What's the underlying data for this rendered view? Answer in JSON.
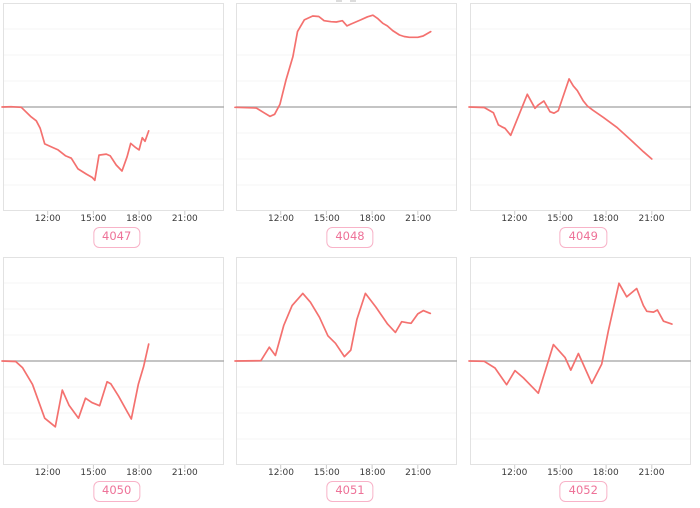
{
  "page": {
    "background": "#ffffff"
  },
  "colors": {
    "line": "#f4716f",
    "zero_line": "#b0b0b0",
    "grid_line": "#f4f4f4",
    "plot_border": "#e2e2e2",
    "tick_mark": "#cccccc",
    "tick_label": "#3a3a3a",
    "badge_text": "#ee7298",
    "badge_border": "#f8b3c8",
    "badge_background": "#ffffff"
  },
  "x_axis": {
    "tick_labels": [
      "12:00",
      "15:00",
      "18:00",
      "21:00"
    ],
    "tick_hours": [
      12,
      15,
      18,
      21
    ]
  },
  "chart_data": {
    "type": "line",
    "layout": "2x3 small multiples, shared style",
    "x_range_hours": [
      9.0,
      23.5
    ],
    "ylim_units": [
      -4,
      4
    ],
    "y_axis_labels_visible": false,
    "reference_line_value": 0,
    "grid": "horizontal only, 8 intervals, zero line emphasized",
    "panels": [
      {
        "label": "4047",
        "points": [
          [
            9.0,
            0
          ],
          [
            9.6,
            0.01
          ],
          [
            10.27,
            -0.01
          ],
          [
            10.88,
            -0.36
          ],
          [
            11.25,
            -0.53
          ],
          [
            11.51,
            -0.82
          ],
          [
            11.8,
            -1.42
          ],
          [
            12.35,
            -1.56
          ],
          [
            12.68,
            -1.65
          ],
          [
            13.18,
            -1.88
          ],
          [
            13.55,
            -1.97
          ],
          [
            13.99,
            -2.38
          ],
          [
            14.54,
            -2.58
          ],
          [
            14.93,
            -2.71
          ],
          [
            15.09,
            -2.82
          ],
          [
            15.37,
            -1.85
          ],
          [
            15.85,
            -1.81
          ],
          [
            16.11,
            -1.88
          ],
          [
            16.5,
            -2.23
          ],
          [
            16.88,
            -2.46
          ],
          [
            17.21,
            -1.91
          ],
          [
            17.45,
            -1.4
          ],
          [
            17.78,
            -1.56
          ],
          [
            18.0,
            -1.65
          ],
          [
            18.21,
            -1.18
          ],
          [
            18.39,
            -1.32
          ],
          [
            18.63,
            -0.92
          ]
        ]
      },
      {
        "label": "4048",
        "points": [
          [
            9.0,
            -0.01
          ],
          [
            10.4,
            -0.04
          ],
          [
            10.9,
            -0.22
          ],
          [
            11.3,
            -0.36
          ],
          [
            11.6,
            -0.28
          ],
          [
            11.95,
            0.1
          ],
          [
            12.35,
            1.04
          ],
          [
            12.8,
            1.94
          ],
          [
            13.1,
            2.9
          ],
          [
            13.55,
            3.35
          ],
          [
            14.1,
            3.5
          ],
          [
            14.5,
            3.48
          ],
          [
            14.85,
            3.32
          ],
          [
            15.3,
            3.28
          ],
          [
            15.65,
            3.27
          ],
          [
            16.05,
            3.32
          ],
          [
            16.35,
            3.12
          ],
          [
            16.6,
            3.19
          ],
          [
            17.25,
            3.35
          ],
          [
            17.7,
            3.47
          ],
          [
            18.05,
            3.53
          ],
          [
            18.35,
            3.41
          ],
          [
            18.7,
            3.22
          ],
          [
            19.0,
            3.12
          ],
          [
            19.35,
            2.94
          ],
          [
            19.8,
            2.77
          ],
          [
            20.1,
            2.71
          ],
          [
            20.45,
            2.68
          ],
          [
            21.0,
            2.68
          ],
          [
            21.35,
            2.73
          ],
          [
            21.85,
            2.9
          ]
        ]
      },
      {
        "label": "4049",
        "points": [
          [
            9.0,
            0
          ],
          [
            10.0,
            -0.02
          ],
          [
            10.6,
            -0.22
          ],
          [
            10.93,
            -0.69
          ],
          [
            11.15,
            -0.76
          ],
          [
            11.36,
            -0.82
          ],
          [
            11.74,
            -1.09
          ],
          [
            12.83,
            0.49
          ],
          [
            13.33,
            -0.05
          ],
          [
            13.55,
            0.08
          ],
          [
            13.92,
            0.23
          ],
          [
            14.32,
            -0.18
          ],
          [
            14.58,
            -0.24
          ],
          [
            14.86,
            -0.14
          ],
          [
            15.57,
            1.08
          ],
          [
            15.85,
            0.81
          ],
          [
            16.11,
            0.63
          ],
          [
            16.5,
            0.24
          ],
          [
            16.77,
            0.04
          ],
          [
            17.12,
            -0.12
          ],
          [
            17.82,
            -0.4
          ],
          [
            18.7,
            -0.78
          ],
          [
            19.57,
            -1.24
          ],
          [
            20.45,
            -1.72
          ],
          [
            21.0,
            -2.0
          ]
        ]
      },
      {
        "label": "4050",
        "points": [
          [
            9.0,
            0
          ],
          [
            9.9,
            -0.02
          ],
          [
            10.35,
            -0.26
          ],
          [
            11.0,
            -0.9
          ],
          [
            11.8,
            -2.2
          ],
          [
            12.5,
            -2.53
          ],
          [
            12.96,
            -1.12
          ],
          [
            13.4,
            -1.7
          ],
          [
            14.02,
            -2.2
          ],
          [
            14.48,
            -1.43
          ],
          [
            14.9,
            -1.6
          ],
          [
            15.41,
            -1.72
          ],
          [
            15.9,
            -0.8
          ],
          [
            16.15,
            -0.88
          ],
          [
            16.65,
            -1.35
          ],
          [
            17.49,
            -2.23
          ],
          [
            17.95,
            -0.9
          ],
          [
            18.3,
            -0.2
          ],
          [
            18.63,
            0.65
          ]
        ]
      },
      {
        "label": "4051",
        "points": [
          [
            9.0,
            0
          ],
          [
            10.7,
            0.01
          ],
          [
            11.25,
            0.53
          ],
          [
            11.65,
            0.21
          ],
          [
            12.2,
            1.36
          ],
          [
            12.75,
            2.13
          ],
          [
            13.45,
            2.6
          ],
          [
            13.95,
            2.26
          ],
          [
            14.55,
            1.68
          ],
          [
            15.1,
            0.97
          ],
          [
            15.6,
            0.68
          ],
          [
            16.18,
            0.17
          ],
          [
            16.6,
            0.42
          ],
          [
            17.0,
            1.6
          ],
          [
            17.56,
            2.6
          ],
          [
            18.26,
            2.06
          ],
          [
            19.02,
            1.42
          ],
          [
            19.53,
            1.1
          ],
          [
            19.94,
            1.51
          ],
          [
            20.34,
            1.47
          ],
          [
            20.56,
            1.45
          ],
          [
            21.0,
            1.81
          ],
          [
            21.36,
            1.94
          ],
          [
            21.82,
            1.83
          ]
        ]
      },
      {
        "label": "4052",
        "points": [
          [
            9.0,
            0
          ],
          [
            10.0,
            -0.01
          ],
          [
            10.71,
            -0.27
          ],
          [
            11.47,
            -0.91
          ],
          [
            12.02,
            -0.37
          ],
          [
            12.57,
            -0.65
          ],
          [
            13.55,
            -1.24
          ],
          [
            14.54,
            0.63
          ],
          [
            15.3,
            0.14
          ],
          [
            15.68,
            -0.35
          ],
          [
            16.18,
            0.29
          ],
          [
            17.06,
            -0.86
          ],
          [
            17.71,
            -0.12
          ],
          [
            18.15,
            1.17
          ],
          [
            18.85,
            2.99
          ],
          [
            19.35,
            2.47
          ],
          [
            20.01,
            2.79
          ],
          [
            20.45,
            2.13
          ],
          [
            20.67,
            1.91
          ],
          [
            21.11,
            1.88
          ],
          [
            21.37,
            1.96
          ],
          [
            21.77,
            1.53
          ],
          [
            22.32,
            1.42
          ]
        ]
      }
    ]
  }
}
